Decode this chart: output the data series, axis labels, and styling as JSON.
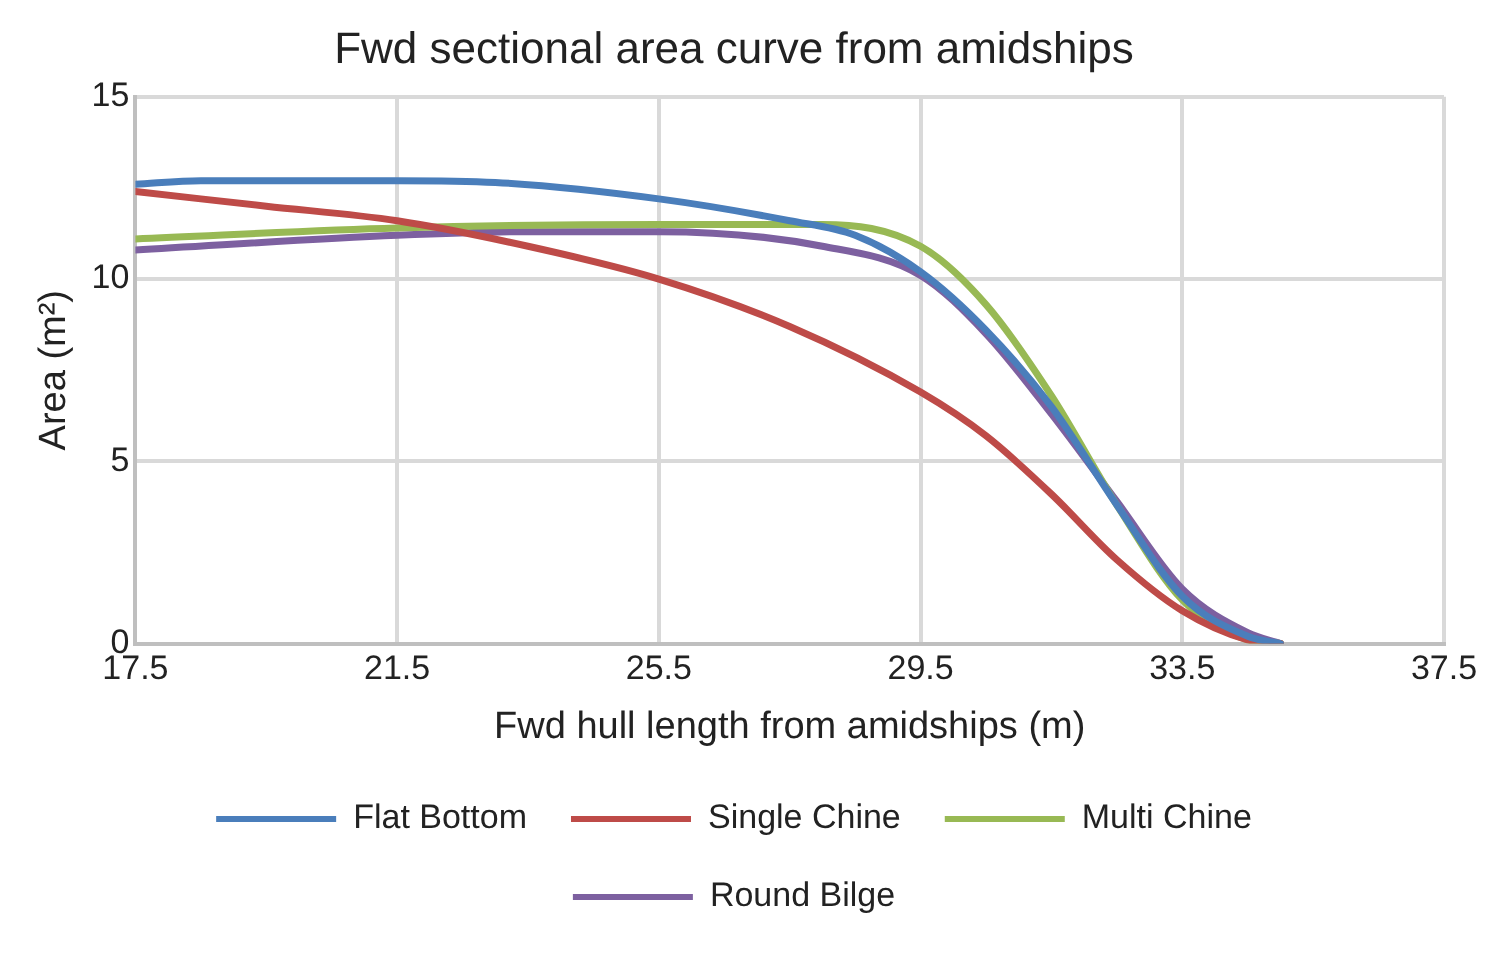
{
  "chart_data": {
    "type": "line",
    "title": "Fwd sectional area curve from amidships",
    "xlabel": "Fwd hull length from amidships (m)",
    "ylabel": "Area (m²)",
    "xlim": [
      17.5,
      37.5
    ],
    "xticks": [
      17.5,
      21.5,
      25.5,
      29.5,
      33.5,
      37.5
    ],
    "ylim": [
      0,
      15
    ],
    "yticks": [
      0,
      5,
      10,
      15
    ],
    "grid": true,
    "legend": "bottom",
    "marker": "none",
    "line_style": "solid",
    "series": [
      {
        "name": "Flat Bottom",
        "color": "#4a7ebb",
        "x": [
          17.5,
          18.5,
          21.5,
          23,
          25.5,
          27.5,
          28.5,
          29.5,
          30.5,
          31.5,
          32.5,
          33.5,
          34.5,
          35
        ],
        "values": [
          12.6,
          12.7,
          12.7,
          12.65,
          12.2,
          11.6,
          11.2,
          10.2,
          8.6,
          6.5,
          3.8,
          1.3,
          0.2,
          0
        ]
      },
      {
        "name": "Single Chine",
        "color": "#be4b48",
        "x": [
          17.5,
          19.5,
          21.5,
          23.5,
          25.5,
          27.5,
          29.5,
          30.5,
          31.5,
          32.5,
          33.5,
          34.5,
          35
        ],
        "values": [
          12.4,
          12.0,
          11.6,
          10.9,
          10.0,
          8.7,
          6.9,
          5.7,
          4.1,
          2.3,
          0.9,
          0.1,
          0
        ]
      },
      {
        "name": "Multi Chine",
        "color": "#98b954",
        "x": [
          17.5,
          21.5,
          25.5,
          28,
          29.5,
          30.5,
          31.5,
          32.5,
          33.5,
          34.5,
          35
        ],
        "values": [
          11.1,
          11.4,
          11.5,
          11.5,
          10.9,
          9.3,
          6.8,
          3.8,
          1.2,
          0.1,
          0
        ]
      },
      {
        "name": "Round Bilge",
        "color": "#7d60a0",
        "x": [
          17.5,
          21.5,
          23.5,
          25.5,
          28,
          29.5,
          30.5,
          31.5,
          32.5,
          33.5,
          34.5,
          35
        ],
        "values": [
          10.8,
          11.2,
          11.3,
          11.3,
          10.9,
          10.1,
          8.5,
          6.3,
          3.9,
          1.5,
          0.3,
          0
        ]
      }
    ]
  }
}
